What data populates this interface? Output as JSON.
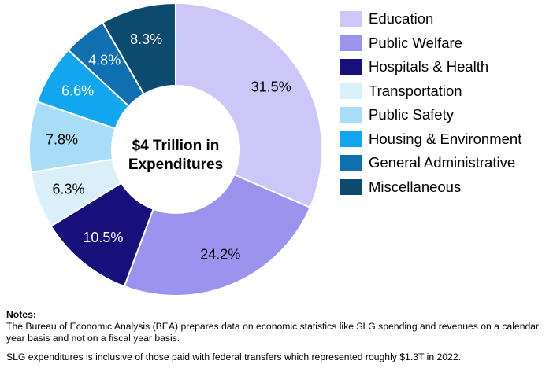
{
  "chart_data": {
    "type": "pie",
    "style": "donut",
    "center_label": [
      "$4 Trillion in",
      "Expenditures"
    ],
    "categories": [
      "Education",
      "Public Welfare",
      "Hospitals & Health",
      "Transportation",
      "Public Safety",
      "Housing & Environment",
      "General Administrative",
      "Miscellaneous"
    ],
    "values": [
      31.5,
      24.2,
      10.5,
      6.3,
      7.8,
      6.6,
      4.8,
      8.3
    ],
    "data_labels": [
      "31.5%",
      "24.2%",
      "10.5%",
      "6.3%",
      "7.8%",
      "6.6%",
      "4.8%",
      "8.3%"
    ],
    "colors": [
      "#ccc7f6",
      "#9b93ed",
      "#17107a",
      "#d9f0fb",
      "#a8dcf7",
      "#12a6ef",
      "#0f6fb0",
      "#0c4a70"
    ],
    "label_colors": [
      "#000000",
      "#000000",
      "#ffffff",
      "#000000",
      "#000000",
      "#ffffff",
      "#ffffff",
      "#ffffff"
    ],
    "legend_position": "right"
  },
  "notes": {
    "heading": "Notes:",
    "lines": [
      "The Bureau of Economic Analysis (BEA) prepares data on economic statistics like SLG spending and revenues on a calendar year basis and not on a fiscal year basis.",
      "SLG expenditures is inclusive of those paid with federal transfers which represented roughly $1.3T in 2022."
    ]
  }
}
